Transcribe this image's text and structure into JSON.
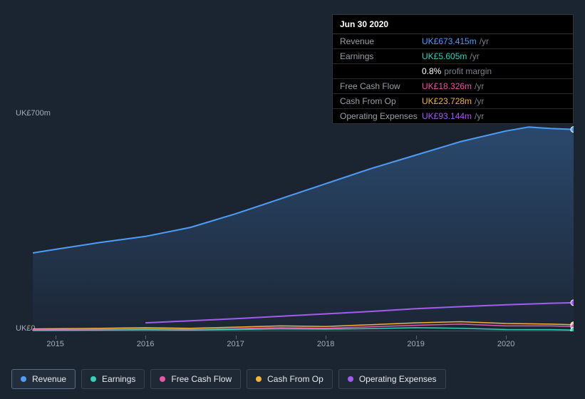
{
  "tooltip": {
    "date": "Jun 30 2020",
    "rows": [
      {
        "label": "Revenue",
        "value": "UK£673.415m",
        "suffix": "/yr",
        "color": "#4f9df7"
      },
      {
        "label": "Earnings",
        "value": "UK£5.605m",
        "suffix": "/yr",
        "color": "#35d0ba"
      },
      {
        "label": "",
        "value": "0.8%",
        "suffix": "profit margin",
        "color": "#ffffff"
      },
      {
        "label": "Free Cash Flow",
        "value": "UK£18.326m",
        "suffix": "/yr",
        "color": "#e857a8"
      },
      {
        "label": "Cash From Op",
        "value": "UK£23.728m",
        "suffix": "/yr",
        "color": "#f2b338"
      },
      {
        "label": "Operating Expenses",
        "value": "UK£93.144m",
        "suffix": "/yr",
        "color": "#a25cf0"
      }
    ]
  },
  "chart": {
    "type": "line",
    "background_color": "#1b2431",
    "plot_fill_top": "#2b3a52",
    "plot_fill_bottom": "#1f2a3b",
    "grid_color": "#3a4250",
    "y_max_label": "UK£700m",
    "y_min_label": "UK£0",
    "y_min": 0,
    "y_max": 700,
    "x_min": 2014.75,
    "x_max": 2020.75,
    "x_ticks": [
      {
        "pos": 2015,
        "label": "2015"
      },
      {
        "pos": 2016,
        "label": "2016"
      },
      {
        "pos": 2017,
        "label": "2017"
      },
      {
        "pos": 2018,
        "label": "2018"
      },
      {
        "pos": 2019,
        "label": "2019"
      },
      {
        "pos": 2020,
        "label": "2020"
      }
    ],
    "series": [
      {
        "name": "Revenue",
        "color": "#4f9df7",
        "width": 2,
        "fill": true,
        "fill_opacity_top": 0.35,
        "fill_opacity_bottom": 0.05,
        "points": [
          [
            2014.75,
            260
          ],
          [
            2015.0,
            272
          ],
          [
            2015.5,
            295
          ],
          [
            2016.0,
            315
          ],
          [
            2016.5,
            345
          ],
          [
            2017.0,
            390
          ],
          [
            2017.5,
            440
          ],
          [
            2018.0,
            490
          ],
          [
            2018.5,
            540
          ],
          [
            2019.0,
            585
          ],
          [
            2019.5,
            630
          ],
          [
            2020.0,
            665
          ],
          [
            2020.25,
            678
          ],
          [
            2020.5,
            673
          ],
          [
            2020.75,
            670
          ]
        ]
      },
      {
        "name": "Operating Expenses",
        "color": "#a25cf0",
        "width": 2,
        "fill": false,
        "start": 2016.0,
        "points": [
          [
            2016.0,
            28
          ],
          [
            2016.5,
            35
          ],
          [
            2017.0,
            42
          ],
          [
            2017.5,
            50
          ],
          [
            2018.0,
            58
          ],
          [
            2018.5,
            66
          ],
          [
            2019.0,
            75
          ],
          [
            2019.5,
            82
          ],
          [
            2020.0,
            88
          ],
          [
            2020.5,
            93
          ],
          [
            2020.75,
            95
          ]
        ]
      },
      {
        "name": "Cash From Op",
        "color": "#f2b338",
        "width": 1.5,
        "fill": false,
        "points": [
          [
            2014.75,
            8
          ],
          [
            2015.5,
            10
          ],
          [
            2016.0,
            12
          ],
          [
            2016.5,
            10
          ],
          [
            2017.0,
            14
          ],
          [
            2017.5,
            18
          ],
          [
            2018.0,
            16
          ],
          [
            2018.5,
            22
          ],
          [
            2019.0,
            28
          ],
          [
            2019.5,
            32
          ],
          [
            2020.0,
            26
          ],
          [
            2020.5,
            24
          ],
          [
            2020.75,
            22
          ]
        ]
      },
      {
        "name": "Free Cash Flow",
        "color": "#e857a8",
        "width": 1.5,
        "fill": false,
        "points": [
          [
            2014.75,
            5
          ],
          [
            2015.5,
            6
          ],
          [
            2016.0,
            8
          ],
          [
            2016.5,
            6
          ],
          [
            2017.0,
            9
          ],
          [
            2017.5,
            12
          ],
          [
            2018.0,
            10
          ],
          [
            2018.5,
            15
          ],
          [
            2019.0,
            20
          ],
          [
            2019.5,
            24
          ],
          [
            2020.0,
            18
          ],
          [
            2020.5,
            18
          ],
          [
            2020.75,
            16
          ]
        ]
      },
      {
        "name": "Earnings",
        "color": "#35d0ba",
        "width": 1.5,
        "fill": false,
        "points": [
          [
            2014.75,
            3
          ],
          [
            2015.5,
            4
          ],
          [
            2016.0,
            5
          ],
          [
            2016.5,
            4
          ],
          [
            2017.0,
            6
          ],
          [
            2017.5,
            8
          ],
          [
            2018.0,
            7
          ],
          [
            2018.5,
            9
          ],
          [
            2019.0,
            12
          ],
          [
            2019.5,
            10
          ],
          [
            2020.0,
            6
          ],
          [
            2020.5,
            5.6
          ],
          [
            2020.75,
            4
          ]
        ]
      }
    ],
    "marker_x": 2020.75,
    "marker_points": [
      {
        "series": "Revenue",
        "y": 670,
        "color": "#4f9df7"
      },
      {
        "series": "Operating Expenses",
        "y": 95,
        "color": "#a25cf0"
      },
      {
        "series": "Cash From Op",
        "y": 22,
        "color": "#f2b338"
      },
      {
        "series": "Free Cash Flow",
        "y": 16,
        "color": "#e857a8"
      },
      {
        "series": "Earnings",
        "y": 4,
        "color": "#35d0ba"
      }
    ]
  },
  "legend": {
    "items": [
      {
        "label": "Revenue",
        "color": "#4f9df7",
        "active": true
      },
      {
        "label": "Earnings",
        "color": "#35d0ba",
        "active": false
      },
      {
        "label": "Free Cash Flow",
        "color": "#e857a8",
        "active": false
      },
      {
        "label": "Cash From Op",
        "color": "#f2b338",
        "active": false
      },
      {
        "label": "Operating Expenses",
        "color": "#a25cf0",
        "active": false
      }
    ]
  }
}
